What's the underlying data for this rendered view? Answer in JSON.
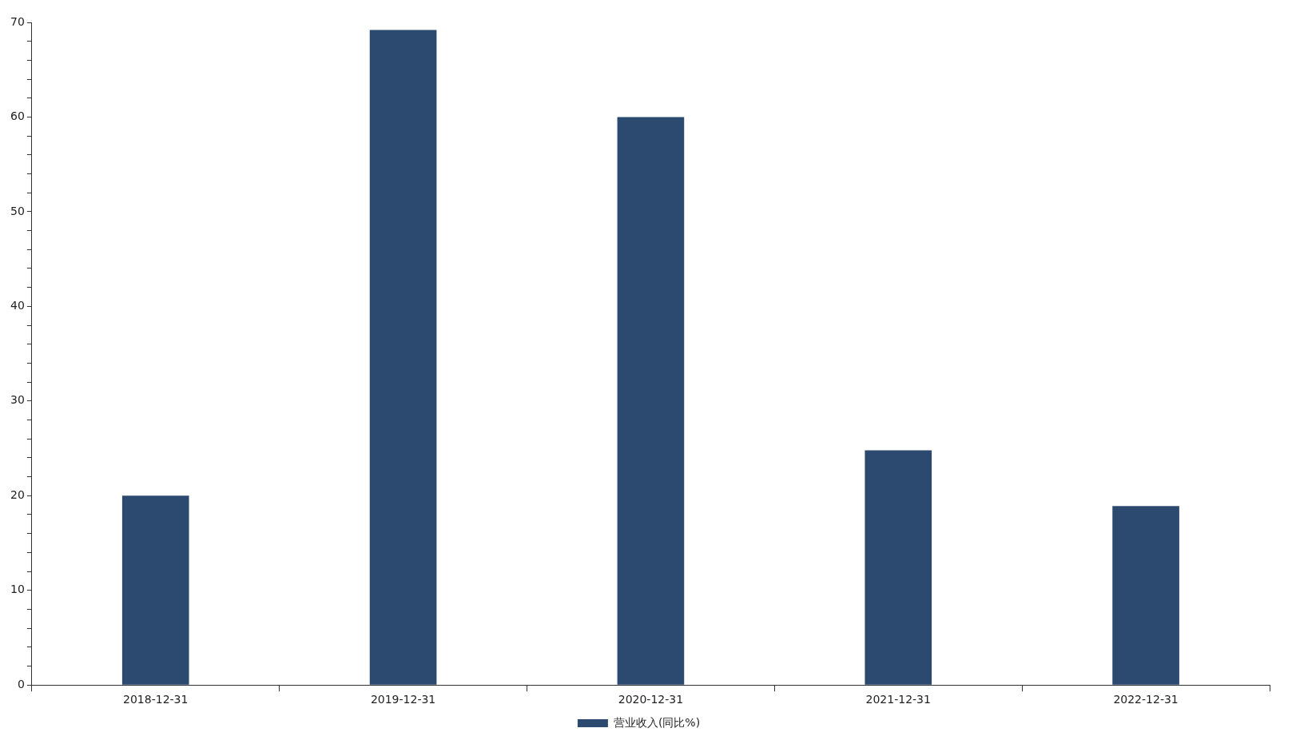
{
  "chart_data": {
    "type": "bar",
    "categories": [
      "2018-12-31",
      "2019-12-31",
      "2020-12-31",
      "2021-12-31",
      "2022-12-31"
    ],
    "series": [
      {
        "name": "营业收入(同比%)",
        "color": "#2c4a70",
        "values": [
          20.0,
          69.2,
          60.0,
          24.8,
          18.9
        ]
      }
    ],
    "ylim": [
      0,
      70
    ],
    "yticks": [
      0,
      {
        "value": 2,
        "label": null
      },
      {
        "value": 4,
        "label": null
      },
      {
        "value": 6,
        "label": null
      },
      {
        "value": 8,
        "label": null
      },
      10,
      {
        "value": 12,
        "label": null
      },
      {
        "value": 14,
        "label": null
      },
      {
        "value": 16,
        "label": null
      },
      {
        "value": 18,
        "label": null
      },
      20,
      {
        "value": 22,
        "label": null
      },
      {
        "value": 24,
        "label": null
      },
      {
        "value": 26,
        "label": null
      },
      {
        "value": 28,
        "label": null
      },
      30,
      {
        "value": 32,
        "label": null
      },
      {
        "value": 34,
        "label": null
      },
      {
        "value": 36,
        "label": null
      },
      {
        "value": 38,
        "label": null
      },
      40,
      {
        "value": 42,
        "label": null
      },
      {
        "value": 44,
        "label": null
      },
      {
        "value": 46,
        "label": null
      },
      {
        "value": 48,
        "label": null
      },
      50,
      {
        "value": 52,
        "label": null
      },
      {
        "value": 54,
        "label": null
      },
      {
        "value": 56,
        "label": null
      },
      {
        "value": 58,
        "label": null
      },
      60,
      {
        "value": 62,
        "label": null
      },
      {
        "value": 64,
        "label": null
      },
      {
        "value": 66,
        "label": null
      },
      {
        "value": 68,
        "label": null
      },
      70
    ],
    "grid": false,
    "legend": "bottom"
  }
}
